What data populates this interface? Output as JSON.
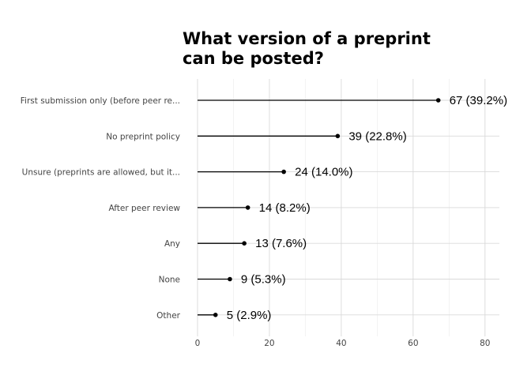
{
  "chart_data": {
    "type": "lollipop",
    "title_lines": [
      "What version of a preprint",
      "can be posted?"
    ],
    "categories": [
      "First submission only (before peer re...",
      "No preprint policy",
      "Unsure (preprints are allowed, but it...",
      "After peer review",
      "Any",
      "None",
      "Other"
    ],
    "values": [
      67,
      39,
      24,
      14,
      13,
      9,
      5
    ],
    "labels": [
      "67 (39.2%)",
      "39 (22.8%)",
      "24 (14.0%)",
      "14 (8.2%)",
      "13 (7.6%)",
      "9 (5.3%)",
      "5 (2.9%)"
    ],
    "x_ticks": [
      0,
      20,
      40,
      60,
      80
    ],
    "x_tick_labels": [
      "0",
      "20",
      "40",
      "60",
      "80"
    ],
    "xlim": [
      0,
      84
    ],
    "xlabel": "",
    "ylabel": "",
    "grid": true,
    "legend": false,
    "colors": {
      "line": "#000000",
      "point": "#000000",
      "grid": "#d9d9d9"
    }
  }
}
